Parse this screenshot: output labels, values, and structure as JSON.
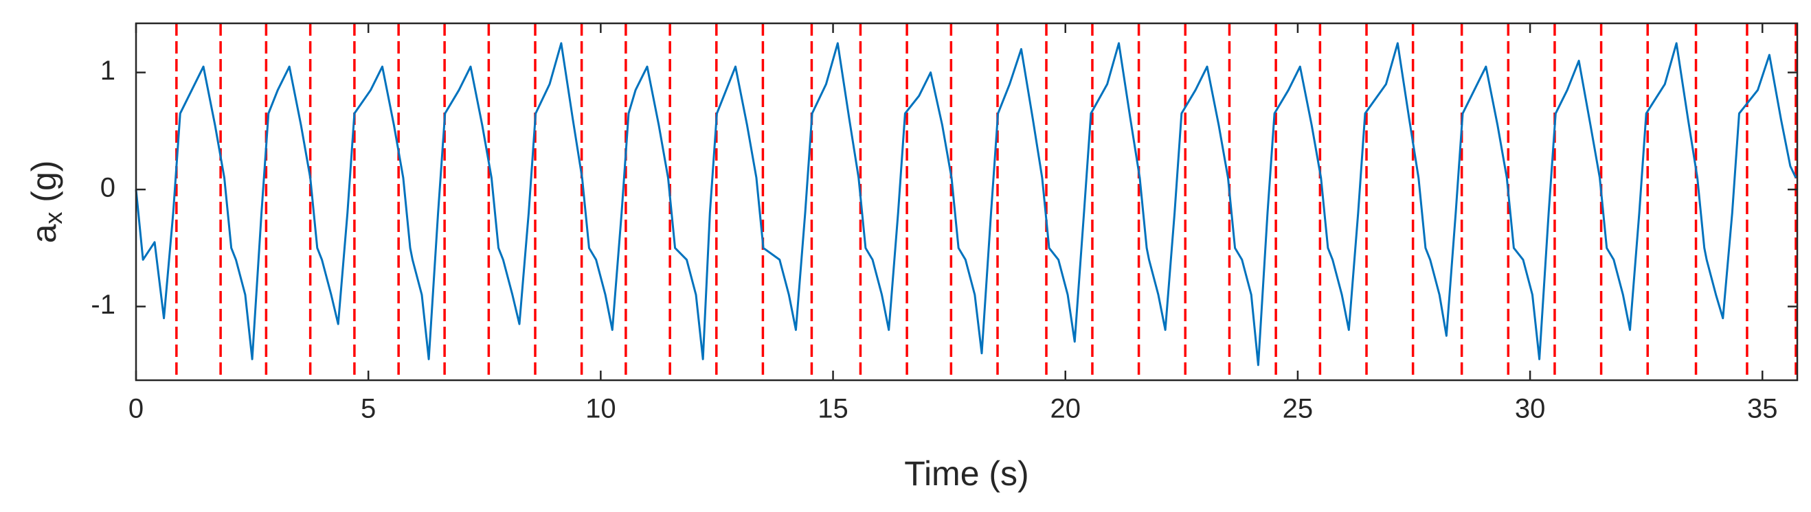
{
  "chart_data": {
    "type": "line",
    "xlabel": "Time (s)",
    "ylabel": [
      "a",
      "x",
      " (g)"
    ],
    "xlim": [
      0,
      35.75
    ],
    "ylim": [
      -1.63,
      1.42
    ],
    "xticks": [
      0,
      5,
      10,
      15,
      20,
      25,
      30,
      35
    ],
    "yticks": [
      -1,
      0,
      1
    ],
    "series": [
      {
        "color": "#0072bd",
        "x": [
          0,
          0.15,
          0.4,
          0.6,
          0.8,
          0.95,
          1.2,
          1.45,
          1.7,
          1.9,
          2.05,
          2.15,
          2.35,
          2.5,
          2.7,
          2.85,
          3.05,
          3.3,
          3.55,
          3.75,
          3.9,
          4.0,
          4.2,
          4.35,
          4.55,
          4.7,
          5.05,
          5.3,
          5.55,
          5.75,
          5.9,
          5.95,
          6.15,
          6.3,
          6.5,
          6.65,
          6.95,
          7.2,
          7.45,
          7.65,
          7.8,
          7.9,
          8.1,
          8.25,
          8.45,
          8.6,
          8.9,
          9.15,
          9.4,
          9.6,
          9.75,
          9.9,
          10.1,
          10.25,
          10.45,
          10.6,
          10.75,
          11.0,
          11.25,
          11.45,
          11.6,
          11.85,
          12.05,
          12.2,
          12.35,
          12.5,
          12.7,
          12.9,
          13.15,
          13.35,
          13.5,
          13.85,
          14.05,
          14.2,
          14.4,
          14.55,
          14.85,
          15.1,
          15.35,
          15.55,
          15.7,
          15.85,
          16.05,
          16.2,
          16.4,
          16.55,
          16.85,
          17.1,
          17.35,
          17.55,
          17.7,
          17.85,
          18.05,
          18.2,
          18.4,
          18.55,
          18.8,
          19.05,
          19.3,
          19.5,
          19.65,
          19.85,
          20.05,
          20.2,
          20.4,
          20.55,
          20.9,
          21.15,
          21.4,
          21.6,
          21.75,
          21.8,
          22.0,
          22.15,
          22.35,
          22.5,
          22.8,
          23.05,
          23.3,
          23.5,
          23.65,
          23.8,
          24.0,
          24.15,
          24.35,
          24.5,
          24.8,
          25.05,
          25.3,
          25.5,
          25.65,
          25.75,
          25.95,
          26.1,
          26.3,
          26.45,
          26.9,
          27.15,
          27.4,
          27.6,
          27.75,
          27.85,
          28.05,
          28.2,
          28.4,
          28.55,
          28.8,
          29.05,
          29.3,
          29.5,
          29.65,
          29.85,
          30.05,
          30.2,
          30.4,
          30.55,
          30.8,
          31.05,
          31.3,
          31.5,
          31.65,
          31.8,
          32.0,
          32.15,
          32.35,
          32.5,
          32.9,
          33.15,
          33.4,
          33.6,
          33.75,
          33.8,
          34.0,
          34.15,
          34.35,
          34.5,
          34.9,
          35.15,
          35.4,
          35.6,
          35.72
        ],
        "values": [
          0.0,
          -0.6,
          -0.45,
          -1.1,
          -0.2,
          0.65,
          0.85,
          1.05,
          0.55,
          0.1,
          -0.5,
          -0.6,
          -0.9,
          -1.45,
          -0.2,
          0.65,
          0.85,
          1.05,
          0.55,
          0.1,
          -0.5,
          -0.6,
          -0.9,
          -1.15,
          -0.2,
          0.65,
          0.85,
          1.05,
          0.55,
          0.1,
          -0.5,
          -0.6,
          -0.9,
          -1.45,
          -0.2,
          0.65,
          0.85,
          1.05,
          0.55,
          0.1,
          -0.5,
          -0.6,
          -0.9,
          -1.15,
          -0.2,
          0.65,
          0.9,
          1.25,
          0.6,
          0.1,
          -0.5,
          -0.6,
          -0.9,
          -1.2,
          -0.2,
          0.65,
          0.85,
          1.05,
          0.55,
          0.1,
          -0.5,
          -0.6,
          -0.9,
          -1.45,
          -0.2,
          0.65,
          0.85,
          1.05,
          0.55,
          0.1,
          -0.5,
          -0.6,
          -0.9,
          -1.2,
          -0.2,
          0.65,
          0.9,
          1.25,
          0.6,
          0.1,
          -0.5,
          -0.6,
          -0.9,
          -1.2,
          -0.2,
          0.65,
          0.8,
          1.0,
          0.55,
          0.1,
          -0.5,
          -0.6,
          -0.9,
          -1.4,
          -0.2,
          0.65,
          0.9,
          1.2,
          0.6,
          0.1,
          -0.5,
          -0.6,
          -0.9,
          -1.3,
          -0.2,
          0.65,
          0.9,
          1.25,
          0.6,
          0.1,
          -0.5,
          -0.6,
          -0.9,
          -1.2,
          -0.2,
          0.65,
          0.85,
          1.05,
          0.55,
          0.1,
          -0.5,
          -0.6,
          -0.9,
          -1.5,
          -0.2,
          0.65,
          0.85,
          1.05,
          0.55,
          0.1,
          -0.5,
          -0.6,
          -0.9,
          -1.2,
          -0.2,
          0.65,
          0.9,
          1.25,
          0.6,
          0.1,
          -0.5,
          -0.6,
          -0.9,
          -1.25,
          -0.2,
          0.65,
          0.85,
          1.05,
          0.55,
          0.1,
          -0.5,
          -0.6,
          -0.9,
          -1.45,
          -0.2,
          0.65,
          0.85,
          1.1,
          0.55,
          0.1,
          -0.5,
          -0.6,
          -0.9,
          -1.2,
          -0.2,
          0.65,
          0.9,
          1.25,
          0.6,
          0.1,
          -0.5,
          -0.6,
          -0.9,
          -1.1,
          -0.2,
          0.65,
          0.85,
          1.15,
          0.6,
          0.2,
          0.1
        ]
      }
    ],
    "vlines": {
      "color": "#ff0000",
      "x": [
        0.87,
        1.82,
        2.8,
        3.75,
        4.7,
        5.65,
        6.64,
        7.59,
        8.59,
        9.59,
        10.54,
        11.49,
        12.49,
        13.49,
        14.54,
        15.59,
        16.59,
        17.54,
        18.54,
        19.59,
        20.58,
        21.58,
        22.58,
        23.53,
        24.53,
        25.48,
        26.48,
        27.48,
        28.53,
        29.53,
        30.53,
        31.53,
        32.53,
        33.57,
        34.67,
        35.72
      ]
    }
  }
}
